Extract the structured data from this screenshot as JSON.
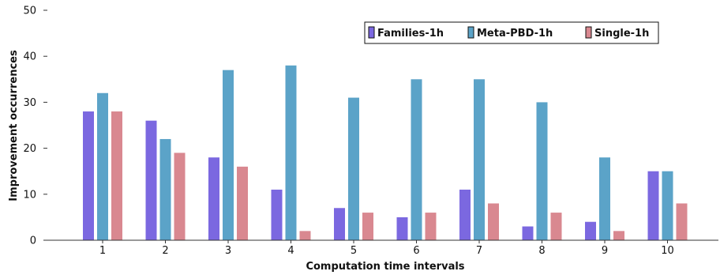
{
  "chart_data": {
    "type": "bar",
    "title": "",
    "xlabel": "Computation time intervals",
    "ylabel": "Improvement occurrences",
    "categories": [
      "1",
      "2",
      "3",
      "4",
      "5",
      "6",
      "7",
      "8",
      "9",
      "10"
    ],
    "ylim": [
      0,
      50
    ],
    "yticks": [
      0,
      10,
      20,
      30,
      40,
      50
    ],
    "grid": false,
    "legend_position": "top-right",
    "series": [
      {
        "name": "Families-1h",
        "color": "#7b68e0",
        "values": [
          28,
          26,
          18,
          11,
          7,
          5,
          11,
          3,
          4,
          15
        ]
      },
      {
        "name": "Meta-PBD-1h",
        "color": "#5ba3c8",
        "values": [
          32,
          22,
          37,
          38,
          31,
          35,
          35,
          30,
          18,
          15
        ]
      },
      {
        "name": "Single-1h",
        "color": "#d98890",
        "values": [
          28,
          19,
          16,
          2,
          6,
          6,
          8,
          6,
          2,
          8
        ]
      }
    ]
  }
}
